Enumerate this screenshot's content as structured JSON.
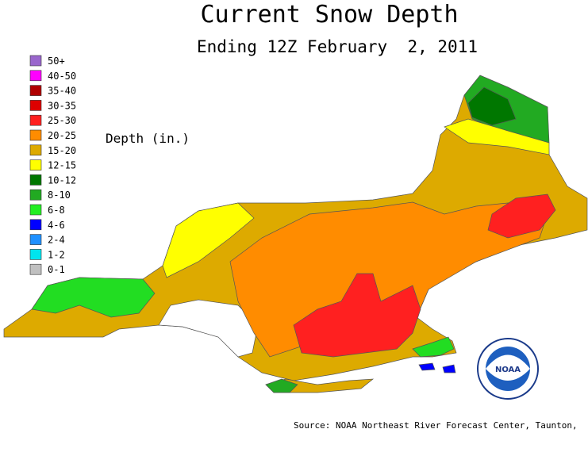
{
  "title": "Current Snow Depth",
  "subtitle": "Ending 12Z February  2, 2011",
  "legend": {
    "title": "Depth (in.)",
    "items": [
      {
        "label": "50+",
        "color": "#9966cc"
      },
      {
        "label": "40-50",
        "color": "#ff00ff"
      },
      {
        "label": "35-40",
        "color": "#b00000"
      },
      {
        "label": "30-35",
        "color": "#dd0000"
      },
      {
        "label": "25-30",
        "color": "#ff2020"
      },
      {
        "label": "20-25",
        "color": "#ff8c00"
      },
      {
        "label": "15-20",
        "color": "#ddaa00"
      },
      {
        "label": "12-15",
        "color": "#ffff00"
      },
      {
        "label": "10-12",
        "color": "#007700"
      },
      {
        "label": "8-10",
        "color": "#22aa22"
      },
      {
        "label": "6-8",
        "color": "#22ee22"
      },
      {
        "label": "4-6",
        "color": "#0000ff"
      },
      {
        "label": "2-4",
        "color": "#1e90ff"
      },
      {
        "label": "1-2",
        "color": "#00e5ee"
      },
      {
        "label": "0-1",
        "color": "#c0c0c0"
      }
    ]
  },
  "source": "Source: NOAA Northeast River Forecast Center, Taunton,"
}
